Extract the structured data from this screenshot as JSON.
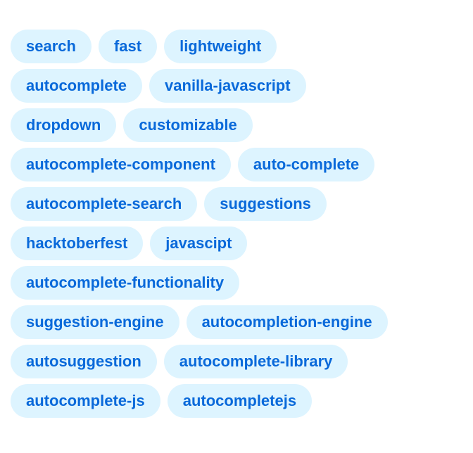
{
  "topics": {
    "rows": [
      [
        "search",
        "fast",
        "lightweight"
      ],
      [
        "autocomplete",
        "vanilla-javascript"
      ],
      [
        "dropdown",
        "customizable"
      ],
      [
        "autocomplete-component",
        "auto-complete"
      ],
      [
        "autocomplete-search",
        "suggestions"
      ],
      [
        "hacktoberfest",
        "javascipt"
      ],
      [
        "autocomplete-functionality"
      ],
      [
        "suggestion-engine",
        "autocompletion-engine"
      ],
      [
        "autosuggestion",
        "autocomplete-library"
      ],
      [
        "autocomplete-js",
        "autocompletejs"
      ]
    ]
  }
}
